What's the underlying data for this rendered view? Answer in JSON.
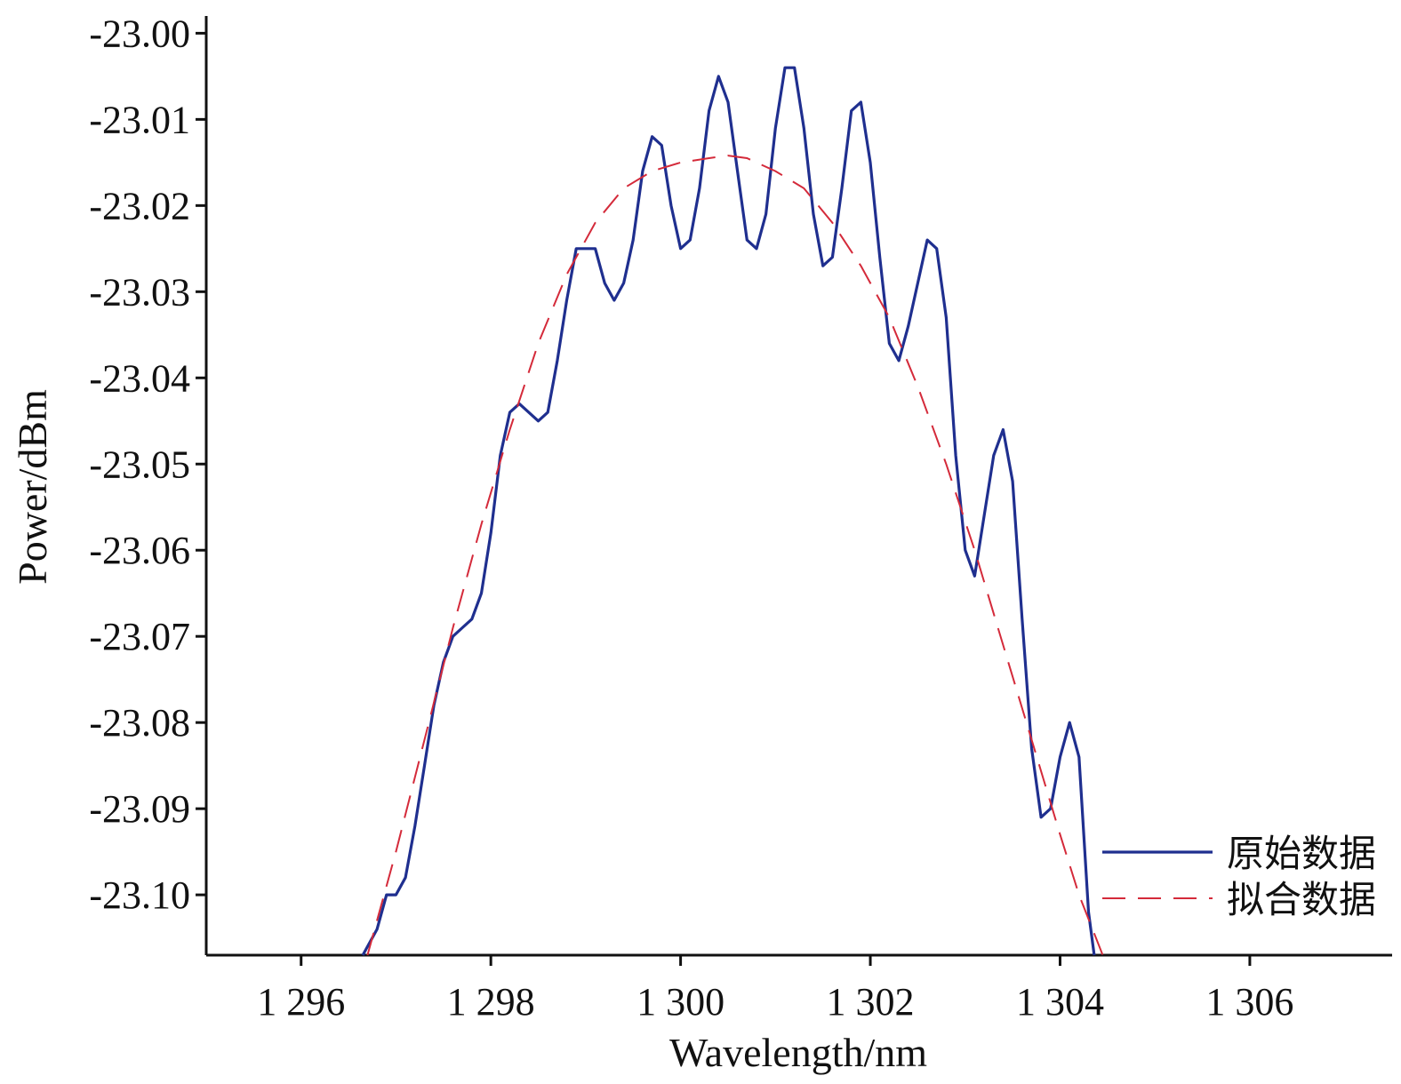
{
  "chart_data": {
    "type": "line",
    "xlabel": "Wavelength/nm",
    "ylabel": "Power/dBm",
    "xlim": [
      1295.0,
      1307.5
    ],
    "ylim": [
      -23.107,
      -22.998
    ],
    "xticks": [
      1296,
      1298,
      1300,
      1302,
      1304,
      1306
    ],
    "xtick_labels": [
      "1 296",
      "1 298",
      "1 300",
      "1 302",
      "1 304",
      "1 306"
    ],
    "yticks": [
      -23.0,
      -23.01,
      -23.02,
      -23.03,
      -23.04,
      -23.05,
      -23.06,
      -23.07,
      -23.08,
      -23.09,
      -23.1
    ],
    "ytick_labels": [
      "-23.00",
      "-23.01",
      "-23.02",
      "-23.03",
      "-23.04",
      "-23.05",
      "-23.06",
      "-23.07",
      "-23.08",
      "-23.09",
      "-23.10"
    ],
    "grid": false,
    "legend_position": "bottom-right",
    "series": [
      {
        "name": "原始数据",
        "color": "#1f2f8f",
        "style": "solid",
        "x": [
          1296.65,
          1296.8,
          1296.9,
          1297.0,
          1297.1,
          1297.2,
          1297.3,
          1297.4,
          1297.5,
          1297.6,
          1297.7,
          1297.8,
          1297.9,
          1298.0,
          1298.1,
          1298.2,
          1298.3,
          1298.4,
          1298.5,
          1298.6,
          1298.7,
          1298.8,
          1298.9,
          1299.0,
          1299.1,
          1299.2,
          1299.3,
          1299.4,
          1299.5,
          1299.6,
          1299.7,
          1299.8,
          1299.9,
          1300.0,
          1300.1,
          1300.2,
          1300.3,
          1300.4,
          1300.5,
          1300.6,
          1300.7,
          1300.8,
          1300.9,
          1301.0,
          1301.1,
          1301.2,
          1301.3,
          1301.4,
          1301.5,
          1301.6,
          1301.7,
          1301.8,
          1301.9,
          1302.0,
          1302.1,
          1302.2,
          1302.3,
          1302.4,
          1302.5,
          1302.6,
          1302.7,
          1302.8,
          1302.9,
          1303.0,
          1303.1,
          1303.2,
          1303.3,
          1303.4,
          1303.5,
          1303.6,
          1303.7,
          1303.8,
          1303.9,
          1304.0,
          1304.1,
          1304.2,
          1304.3,
          1304.36
        ],
        "y": [
          -23.107,
          -23.104,
          -23.1,
          -23.1,
          -23.098,
          -23.092,
          -23.085,
          -23.078,
          -23.073,
          -23.07,
          -23.069,
          -23.068,
          -23.065,
          -23.058,
          -23.049,
          -23.044,
          -23.043,
          -23.044,
          -23.045,
          -23.044,
          -23.038,
          -23.031,
          -23.025,
          -23.025,
          -23.025,
          -23.029,
          -23.031,
          -23.029,
          -23.024,
          -23.016,
          -23.012,
          -23.013,
          -23.02,
          -23.025,
          -23.024,
          -23.018,
          -23.009,
          -23.005,
          -23.008,
          -23.016,
          -23.024,
          -23.025,
          -23.021,
          -23.011,
          -23.004,
          -23.004,
          -23.011,
          -23.021,
          -23.027,
          -23.026,
          -23.018,
          -23.009,
          -23.008,
          -23.015,
          -23.026,
          -23.036,
          -23.038,
          -23.034,
          -23.029,
          -23.024,
          -23.025,
          -23.033,
          -23.049,
          -23.06,
          -23.063,
          -23.056,
          -23.049,
          -23.046,
          -23.052,
          -23.068,
          -23.083,
          -23.091,
          -23.09,
          -23.084,
          -23.08,
          -23.084,
          -23.102,
          -23.107
        ]
      },
      {
        "name": "拟合数据",
        "color": "#d42a3a",
        "style": "dashed",
        "x": [
          1296.7,
          1297.0,
          1297.3,
          1297.6,
          1297.9,
          1298.2,
          1298.5,
          1298.8,
          1299.1,
          1299.4,
          1299.7,
          1300.0,
          1300.3,
          1300.5,
          1300.7,
          1301.0,
          1301.3,
          1301.6,
          1301.9,
          1302.2,
          1302.5,
          1302.8,
          1303.1,
          1303.4,
          1303.7,
          1304.0,
          1304.2,
          1304.45
        ],
        "y": [
          -23.107,
          -23.095,
          -23.082,
          -23.069,
          -23.057,
          -23.046,
          -23.036,
          -23.028,
          -23.022,
          -23.018,
          -23.016,
          -23.015,
          -23.0145,
          -23.0142,
          -23.0145,
          -23.016,
          -23.018,
          -23.022,
          -23.027,
          -23.033,
          -23.041,
          -23.05,
          -23.06,
          -23.071,
          -23.082,
          -23.093,
          -23.1,
          -23.107
        ]
      }
    ]
  }
}
